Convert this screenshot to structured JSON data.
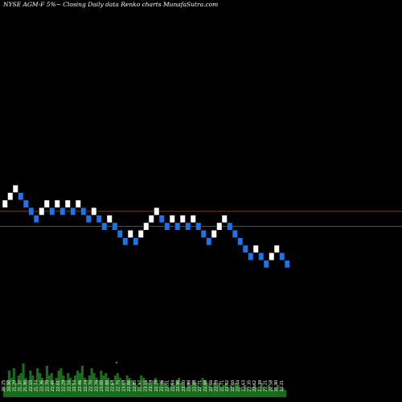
{
  "chart_data": {
    "type": "renko",
    "title": "NYSE AGM-F 5%~  Closing Daily data  Renko  charts MunafaSutra.com",
    "colors": {
      "up_brick": "#ffffff",
      "down_brick": "#1e73e6",
      "reference_line": "#b0521c",
      "volume": "#1c6b1c",
      "background": "#000000"
    },
    "reference_lines": [
      23.05,
      22.85
    ],
    "y_range": [
      21.05,
      25.7
    ],
    "bricks": [
      {
        "level": 23.15,
        "dir": "up"
      },
      {
        "level": 23.25,
        "dir": "up"
      },
      {
        "level": 23.35,
        "dir": "up"
      },
      {
        "level": 23.25,
        "dir": "down"
      },
      {
        "level": 23.15,
        "dir": "down"
      },
      {
        "level": 23.05,
        "dir": "down"
      },
      {
        "level": 22.95,
        "dir": "down"
      },
      {
        "level": 23.05,
        "dir": "up"
      },
      {
        "level": 23.15,
        "dir": "up"
      },
      {
        "level": 23.05,
        "dir": "down"
      },
      {
        "level": 23.15,
        "dir": "up"
      },
      {
        "level": 23.05,
        "dir": "down"
      },
      {
        "level": 23.15,
        "dir": "up"
      },
      {
        "level": 23.05,
        "dir": "down"
      },
      {
        "level": 23.15,
        "dir": "up"
      },
      {
        "level": 23.05,
        "dir": "down"
      },
      {
        "level": 22.95,
        "dir": "down"
      },
      {
        "level": 23.05,
        "dir": "up"
      },
      {
        "level": 22.95,
        "dir": "down"
      },
      {
        "level": 22.85,
        "dir": "down"
      },
      {
        "level": 22.95,
        "dir": "up"
      },
      {
        "level": 22.85,
        "dir": "down"
      },
      {
        "level": 22.75,
        "dir": "down"
      },
      {
        "level": 22.65,
        "dir": "down"
      },
      {
        "level": 22.75,
        "dir": "up"
      },
      {
        "level": 22.65,
        "dir": "down"
      },
      {
        "level": 22.75,
        "dir": "up"
      },
      {
        "level": 22.85,
        "dir": "up"
      },
      {
        "level": 22.95,
        "dir": "up"
      },
      {
        "level": 23.05,
        "dir": "up"
      },
      {
        "level": 22.95,
        "dir": "down"
      },
      {
        "level": 22.85,
        "dir": "down"
      },
      {
        "level": 22.95,
        "dir": "up"
      },
      {
        "level": 22.85,
        "dir": "down"
      },
      {
        "level": 22.95,
        "dir": "up"
      },
      {
        "level": 22.85,
        "dir": "down"
      },
      {
        "level": 22.95,
        "dir": "up"
      },
      {
        "level": 22.85,
        "dir": "down"
      },
      {
        "level": 22.75,
        "dir": "down"
      },
      {
        "level": 22.65,
        "dir": "down"
      },
      {
        "level": 22.75,
        "dir": "up"
      },
      {
        "level": 22.85,
        "dir": "up"
      },
      {
        "level": 22.95,
        "dir": "up"
      },
      {
        "level": 22.85,
        "dir": "down"
      },
      {
        "level": 22.75,
        "dir": "down"
      },
      {
        "level": 22.65,
        "dir": "down"
      },
      {
        "level": 22.55,
        "dir": "down"
      },
      {
        "level": 22.45,
        "dir": "down"
      },
      {
        "level": 22.55,
        "dir": "up"
      },
      {
        "level": 22.45,
        "dir": "down"
      },
      {
        "level": 22.35,
        "dir": "down"
      },
      {
        "level": 22.45,
        "dir": "up"
      },
      {
        "level": 22.55,
        "dir": "up"
      },
      {
        "level": 22.45,
        "dir": "down"
      },
      {
        "level": 22.35,
        "dir": "down"
      }
    ],
    "x_tick_labels": [
      "20.25",
      "20.90",
      "21.20",
      "21.37",
      "21.90",
      "22.10",
      "21.74",
      "22.36",
      "22.70",
      "22.46",
      "22.01",
      "22.29",
      "22.16",
      "22.53",
      "22.46",
      "22.74",
      "22.70",
      "22.76",
      "23.00",
      "22.88",
      "22.64",
      "22.75",
      "23.03",
      "22.86",
      "22.85",
      "22.97",
      "23.15",
      "23.04",
      "22.79",
      "22.96",
      "22.51",
      "22.64",
      "22.90",
      "23.00",
      "22.98",
      "22.80",
      "22.71",
      "22.88",
      "22.66",
      "22.89",
      "22.71",
      "22.52",
      "22.60",
      "22.44",
      "22.63",
      "22.35",
      "22.62",
      "22.39",
      "22.21",
      "22.58",
      "21.90",
      "22.21"
    ],
    "volume": [
      20,
      35,
      55,
      40,
      60,
      30,
      45,
      50,
      70,
      40,
      35,
      55,
      45,
      30,
      60,
      50,
      40,
      35,
      65,
      45,
      50,
      30,
      40,
      55,
      60,
      45,
      35,
      50,
      40,
      30,
      45,
      55,
      50,
      65,
      40,
      35,
      45,
      60,
      50,
      40,
      35,
      55,
      45,
      50,
      40,
      35,
      30,
      45,
      50,
      40,
      35,
      30,
      45,
      40,
      35,
      30,
      25,
      20,
      45,
      40,
      35,
      30,
      25,
      35,
      40,
      30,
      25,
      35,
      30,
      25,
      20,
      30,
      25,
      35,
      40,
      30,
      25,
      20,
      30,
      25,
      35,
      30,
      25,
      20,
      40,
      35,
      30,
      25,
      20,
      30,
      25,
      30,
      20,
      25,
      30,
      20,
      25,
      20,
      30,
      25,
      20,
      15,
      25,
      20,
      15,
      20,
      25,
      20,
      15,
      30,
      20,
      15,
      25,
      20,
      15,
      20,
      25,
      15,
      20,
      15
    ]
  }
}
